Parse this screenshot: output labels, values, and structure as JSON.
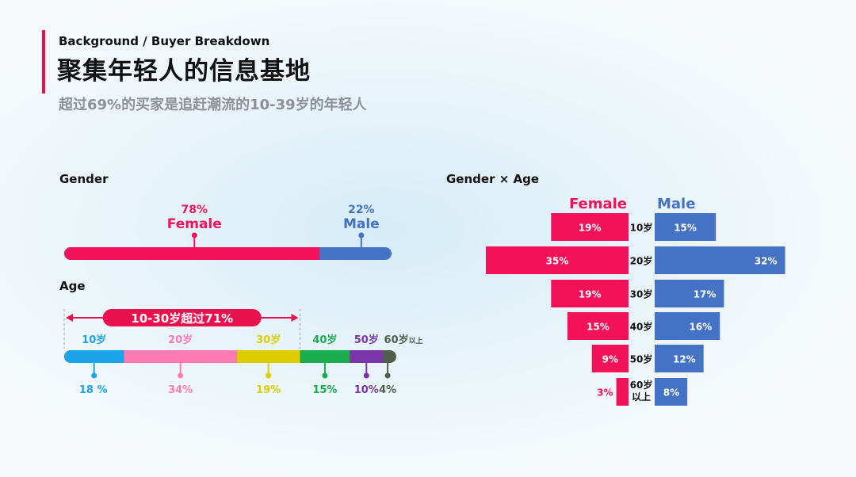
{
  "header": {
    "supertitle": "Background / Buyer Breakdown",
    "title": "聚集年轻人的信息基地",
    "subtitle": "超过69%的买家是追赶潮流的10-39岁的年轻人"
  },
  "colors": {
    "female": "#f2125a",
    "male": "#4472c4",
    "accent": "#e8114e",
    "age_10": "#1aa3e8",
    "age_20": "#ff7cb3",
    "age_30": "#dccc00",
    "age_40": "#1aac4e",
    "age_50": "#7a36a8",
    "age_60": "#4f5f4c"
  },
  "chart_data": [
    {
      "id": "gender",
      "type": "bar",
      "title": "Gender",
      "series": [
        {
          "name": "Female",
          "value": 78,
          "value_label": "78%",
          "color": "#f2125a"
        },
        {
          "name": "Male",
          "value": 22,
          "value_label": "22%",
          "color": "#4472c4"
        }
      ]
    },
    {
      "id": "age",
      "type": "bar",
      "title": "Age",
      "annotation": "10-30岁超过71%",
      "categories": [
        "10岁",
        "20岁",
        "30岁",
        "40岁",
        "50岁",
        "60岁"
      ],
      "category_suffixes": [
        "",
        "",
        "",
        "",
        "",
        "以上"
      ],
      "values": [
        18,
        34,
        19,
        15,
        10,
        4
      ],
      "value_labels": [
        "18 %",
        "34%",
        "19%",
        "15%",
        "10%",
        "4%"
      ],
      "colors": [
        "#1aa3e8",
        "#ff7cb3",
        "#dccc00",
        "#1aac4e",
        "#7a36a8",
        "#4f5f4c"
      ]
    },
    {
      "id": "gender_age",
      "type": "bar",
      "title": "Gender × Age",
      "categories": [
        "10岁",
        "20岁",
        "30岁",
        "40岁",
        "50岁",
        "60岁\n以上"
      ],
      "series": [
        {
          "name": "Female",
          "values": [
            19,
            35,
            19,
            15,
            9,
            3
          ],
          "color": "#f2125a"
        },
        {
          "name": "Male",
          "values": [
            15,
            32,
            17,
            16,
            12,
            8
          ],
          "color": "#4472c4"
        }
      ]
    }
  ]
}
